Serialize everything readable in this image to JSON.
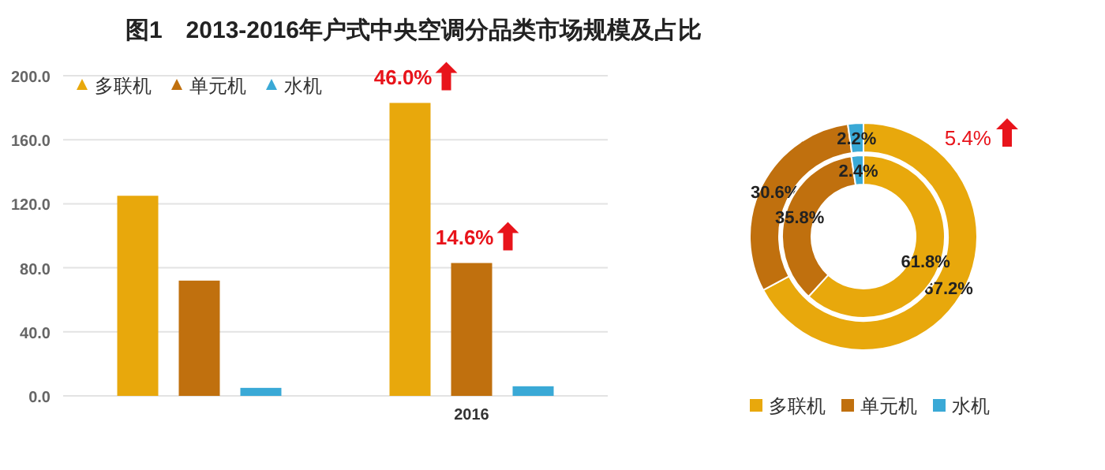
{
  "chart_data": [
    {
      "type": "bar",
      "title": "图1　2013-2016年户式中央空调分品类市场规模及占比",
      "categories": [
        null,
        "2016"
      ],
      "series": [
        {
          "name": "多联机",
          "color": "#e8a80c",
          "values": [
            125,
            183
          ]
        },
        {
          "name": "单元机",
          "color": "#c0700e",
          "values": [
            72,
            83
          ]
        },
        {
          "name": "水机",
          "color": "#3aa9d6",
          "values": [
            5,
            6
          ]
        }
      ],
      "ylim": [
        0,
        200
      ],
      "yticks": [
        {
          "value": 0,
          "label": "0.0"
        },
        {
          "value": 40,
          "label": "40.0"
        },
        {
          "value": 80,
          "label": "80.0"
        },
        {
          "value": 120,
          "label": "120.0"
        },
        {
          "value": 160,
          "label": "160.0"
        },
        {
          "value": 200,
          "label": "200.0"
        }
      ],
      "grid": "y",
      "legend": "top left",
      "marker": "triangle",
      "annotations": [
        "46.0%",
        "14.6%"
      ]
    },
    {
      "type": "donut",
      "categories": [
        "多联机",
        "单元机",
        "水机"
      ],
      "colors": [
        "#e8a80c",
        "#c0700e",
        "#3aa9d6"
      ],
      "series": [
        {
          "values": [
            67.2,
            30.6,
            2.2
          ],
          "value_labels": [
            "67.2%",
            "30.6%",
            "2.2%"
          ]
        },
        {
          "values": [
            61.8,
            35.8,
            2.4
          ],
          "value_labels": [
            "61.8%",
            "35.8%",
            "2.4%"
          ]
        }
      ],
      "legend": "bottom",
      "marker": "square",
      "annotations": [
        "5.4%"
      ]
    }
  ]
}
